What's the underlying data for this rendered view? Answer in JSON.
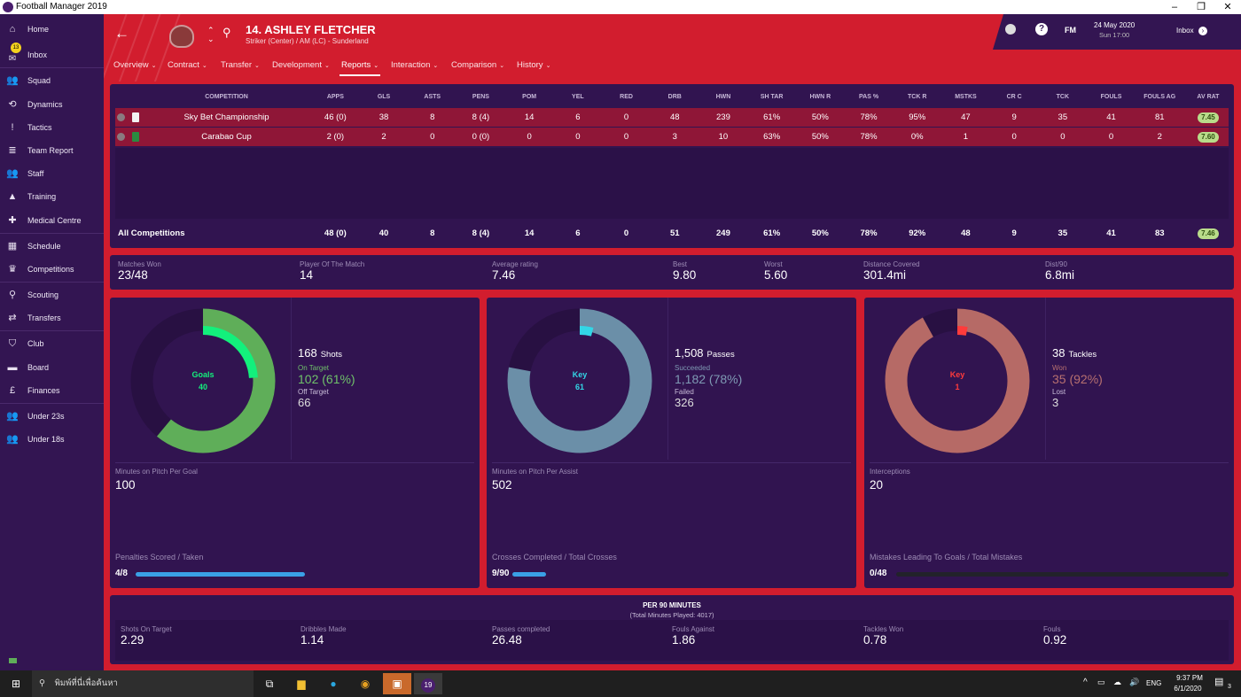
{
  "window": {
    "title": "Football Manager 2019",
    "minimize": "–",
    "maximize": "❐",
    "close": "✕"
  },
  "sidebar": {
    "items": [
      {
        "label": "Home",
        "icon": "home-icon",
        "glyph": "⌂"
      },
      {
        "label": "Inbox",
        "icon": "inbox-icon",
        "glyph": "✉",
        "badge": "13"
      },
      {
        "label": "Squad",
        "icon": "squad-icon",
        "glyph": "👥"
      },
      {
        "label": "Dynamics",
        "icon": "dynamics-icon",
        "glyph": "⟲"
      },
      {
        "label": "Tactics",
        "icon": "tactics-icon",
        "glyph": "!"
      },
      {
        "label": "Team Report",
        "icon": "team-report-icon",
        "glyph": "≣"
      },
      {
        "label": "Staff",
        "icon": "staff-icon",
        "glyph": "👥"
      },
      {
        "label": "Training",
        "icon": "training-icon",
        "glyph": "▲"
      },
      {
        "label": "Medical Centre",
        "icon": "medical-icon",
        "glyph": "✚"
      },
      {
        "label": "Schedule",
        "icon": "schedule-icon",
        "glyph": "▦"
      },
      {
        "label": "Competitions",
        "icon": "trophy-icon",
        "glyph": "♛"
      },
      {
        "label": "Scouting",
        "icon": "scouting-icon",
        "glyph": "⚲"
      },
      {
        "label": "Transfers",
        "icon": "transfers-icon",
        "glyph": "⇄"
      },
      {
        "label": "Club",
        "icon": "club-shield-icon",
        "glyph": "⛉"
      },
      {
        "label": "Board",
        "icon": "board-icon",
        "glyph": "▬"
      },
      {
        "label": "Finances",
        "icon": "finances-icon",
        "glyph": "£"
      },
      {
        "label": "Under 23s",
        "icon": "under23-icon",
        "glyph": "👥"
      },
      {
        "label": "Under 18s",
        "icon": "under18-icon",
        "glyph": "👥"
      }
    ]
  },
  "header": {
    "player_title": "14. ASHLEY FLETCHER",
    "player_subtitle": "Striker (Center) / AM (LC) - Sunderland",
    "tabs": [
      "Overview",
      "Contract",
      "Transfer",
      "Development",
      "Reports",
      "Interaction",
      "Comparison",
      "History"
    ],
    "active_tab": "Reports",
    "date": "24 May 2020",
    "time": "Sun 17:00",
    "fm_label": "FM",
    "inbox_label": "Inbox",
    "help": "?"
  },
  "table": {
    "columns": [
      "COMPETITION",
      "APPS",
      "GLS",
      "ASTS",
      "PENS",
      "POM",
      "YEL",
      "RED",
      "DRB",
      "HWN",
      "SH TAR",
      "HWN R",
      "PAS %",
      "TCK R",
      "MSTKS",
      "CR C",
      "TCK",
      "FOULS",
      "FOULS AG",
      "AV RAT"
    ],
    "rows": [
      {
        "competition": "Sky Bet Championship",
        "values": [
          "46 (0)",
          "38",
          "8",
          "8 (4)",
          "14",
          "6",
          "0",
          "48",
          "239",
          "61%",
          "50%",
          "78%",
          "95%",
          "47",
          "9",
          "35",
          "41",
          "81"
        ],
        "rating": "7.45"
      },
      {
        "competition": "Carabao Cup",
        "values": [
          "2 (0)",
          "2",
          "0",
          "0 (0)",
          "0",
          "0",
          "0",
          "3",
          "10",
          "63%",
          "50%",
          "78%",
          "0%",
          "1",
          "0",
          "0",
          "0",
          "2"
        ],
        "rating": "7.60"
      }
    ],
    "total": {
      "competition": "All Competitions",
      "values": [
        "48 (0)",
        "40",
        "8",
        "8 (4)",
        "14",
        "6",
        "0",
        "51",
        "249",
        "61%",
        "50%",
        "78%",
        "92%",
        "48",
        "9",
        "35",
        "41",
        "83"
      ],
      "rating": "7.46"
    }
  },
  "summary": [
    {
      "label": "Matches Won",
      "value": "23/48"
    },
    {
      "label": "Player Of The Match",
      "value": "14"
    },
    {
      "label": "Average rating",
      "value": "7.46"
    },
    {
      "label": "Best",
      "value": "9.80"
    },
    {
      "label": "Worst",
      "value": "5.60"
    },
    {
      "label": "Distance Covered",
      "value": "301.4mi"
    },
    {
      "label": "Dist/90",
      "value": "6.8mi"
    }
  ],
  "cards": [
    {
      "center_label": "Goals",
      "center_value": "40",
      "total": "168",
      "total_label": "Shots",
      "a_label": "On Target",
      "a_value": "102 (61%)",
      "b_label": "Off Target",
      "b_value": "66",
      "outer_fraction": 0.61,
      "inner_fraction": 0.24,
      "outer_color": "#5fae59",
      "inner_color": "#13f07c",
      "a_color": "#6fc06a",
      "mid_label": "Minutes on Pitch Per Goal",
      "mid_value": "100",
      "bar_label": "Penalties Scored / Taken",
      "bar_value": "4/8",
      "bar_fraction": 0.5,
      "bar_color": "#3aa0e6"
    },
    {
      "center_label": "Key",
      "center_value": "61",
      "total": "1,508",
      "total_label": "Passes",
      "a_label": "Succeeded",
      "a_value": "1,182 (78%)",
      "b_label": "Failed",
      "b_value": "326",
      "outer_fraction": 0.78,
      "inner_fraction": 0.04,
      "outer_color": "#6b8fa8",
      "inner_color": "#33d6e6",
      "a_color": "#7f9ab4",
      "mid_label": "Minutes on Pitch Per Assist",
      "mid_value": "502",
      "bar_label": "Crosses Completed / Total Crosses",
      "bar_value": "9/90",
      "bar_fraction": 0.1,
      "bar_color": "#3aa0e6"
    },
    {
      "center_label": "Key",
      "center_value": "1",
      "total": "38",
      "total_label": "Tackles",
      "a_label": "Won",
      "a_value": "35 (92%)",
      "b_label": "Lost",
      "b_value": "3",
      "outer_fraction": 0.92,
      "inner_fraction": 0.03,
      "outer_color": "#b66a66",
      "inner_color": "#ff3b3b",
      "a_color": "#b77070",
      "mid_label": "Interceptions",
      "mid_value": "20",
      "bar_label": "Mistakes Leading To Goals / Total Mistakes",
      "bar_value": "0/48",
      "bar_fraction": 0,
      "bar_color": "#3aa0e6"
    }
  ],
  "per90": {
    "title": "PER 90 MINUTES",
    "subtitle": "(Total Minutes Played: 4017)",
    "items": [
      {
        "label": "Shots On Target",
        "value": "2.29"
      },
      {
        "label": "Dribbles Made",
        "value": "1.14"
      },
      {
        "label": "Passes completed",
        "value": "26.48"
      },
      {
        "label": "Fouls Against",
        "value": "1.86"
      },
      {
        "label": "Tackles Won",
        "value": "0.78"
      },
      {
        "label": "Fouls",
        "value": "0.92"
      }
    ]
  },
  "taskbar": {
    "search_placeholder": "พิมพ์ที่นี่เพื่อค้นหา",
    "language": "ENG",
    "time": "9:37 PM",
    "date": "6/1/2020",
    "notifications": "3",
    "fm_icon_label": "19"
  }
}
